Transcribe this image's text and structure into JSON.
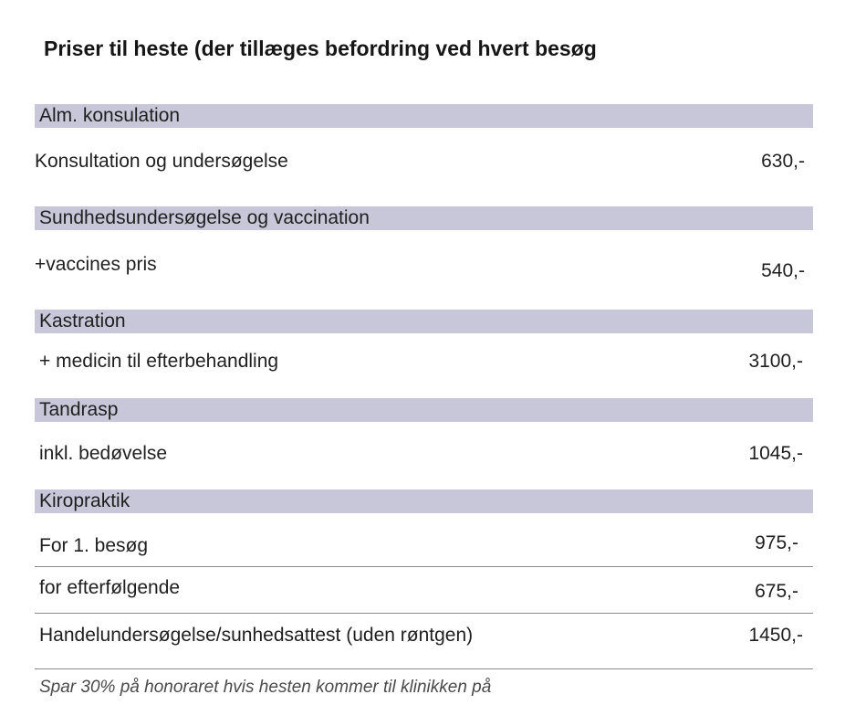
{
  "title": "Priser til heste (der tillæges befordring ved hvert besøg",
  "sections": [
    {
      "header": "Alm. konsulation",
      "rows": [
        {
          "label": "Konsultation og undersøgelse",
          "price": "630,-"
        }
      ]
    },
    {
      "header": "Sundhedsundersøgelse og vaccination",
      "rows": [
        {
          "label": "+vaccines pris",
          "price": "540,-"
        }
      ]
    },
    {
      "header": "Kastration",
      "rows": [
        {
          "label": "+ medicin til efterbehandling",
          "price": "3100,-"
        }
      ]
    },
    {
      "header": "Tandrasp",
      "rows": [
        {
          "label": "inkl. bedøvelse",
          "price": "1045,-"
        }
      ]
    },
    {
      "header": "Kiropraktik",
      "rows": [
        {
          "label": "For 1. besøg",
          "price": "975,-"
        },
        {
          "label": "for efterfølgende",
          "price": "675,-"
        },
        {
          "label": "Handelundersøgelse/sunhedsattest (uden røntgen)",
          "price": "1450,-"
        }
      ]
    }
  ],
  "footnote": "Spar 30% på honoraret hvis hesten kommer til klinikken på"
}
